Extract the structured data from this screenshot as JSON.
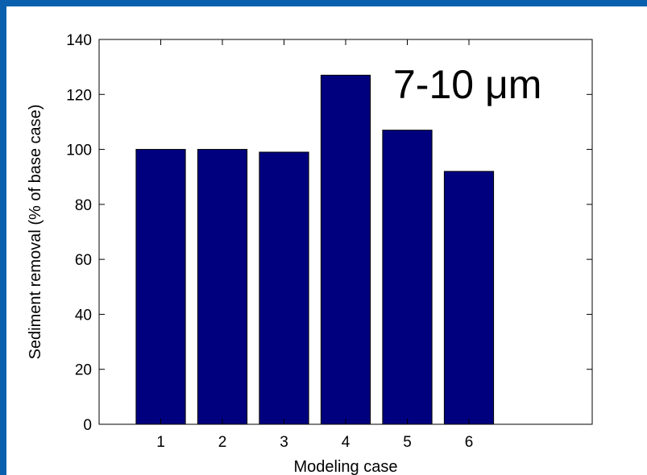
{
  "colors": {
    "frame_accent": "#0a5fae",
    "bar_fill": "#00007f",
    "axis": "#000000"
  },
  "chart_data": {
    "type": "bar",
    "categories": [
      "1",
      "2",
      "3",
      "4",
      "5",
      "6"
    ],
    "values": [
      100,
      100,
      99,
      127,
      107,
      92
    ],
    "xlabel": "Modeling case",
    "ylabel": "Sediment removal (% of base case)",
    "ylim": [
      0,
      140
    ],
    "yticks": [
      0,
      20,
      40,
      60,
      80,
      100,
      120,
      140
    ],
    "xlim": [
      0,
      8
    ],
    "annotation": "7-10 μm",
    "grid": false,
    "legend": "none"
  }
}
